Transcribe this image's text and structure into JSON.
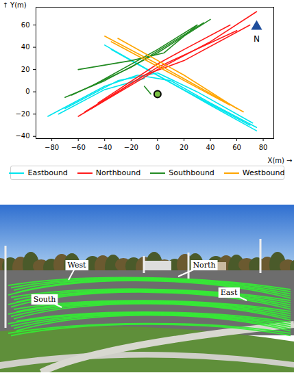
{
  "chart_data": {
    "type": "line",
    "xlabel": "X(m)",
    "ylabel": "Y(m)",
    "xlim": [
      -92,
      88
    ],
    "xticks": [
      -80,
      -60,
      -40,
      -20,
      0,
      20,
      40,
      60,
      80
    ],
    "ylim": [
      -42,
      76
    ],
    "yticks": [
      -40,
      -20,
      0,
      20,
      40,
      60
    ],
    "legend": "bottom",
    "series": [
      {
        "name": "Eastbound",
        "color": "#00e5ee",
        "tracks": [
          [
            [
              -83,
              -22
            ],
            [
              -40,
              5
            ],
            [
              -15,
              15
            ],
            [
              10,
              10
            ],
            [
              40,
              -10
            ],
            [
              75,
              -32
            ]
          ],
          [
            [
              -70,
              -15
            ],
            [
              -30,
              10
            ],
            [
              0,
              17
            ],
            [
              30,
              0
            ],
            [
              72,
              -28
            ]
          ],
          [
            [
              -40,
              42
            ],
            [
              0,
              15
            ],
            [
              40,
              -12
            ],
            [
              75,
              -35
            ]
          ],
          [
            [
              -35,
              38
            ],
            [
              10,
              8
            ],
            [
              70,
              -30
            ]
          ],
          [
            [
              -75,
              -20
            ],
            [
              -40,
              2
            ],
            [
              -10,
              12
            ]
          ]
        ]
      },
      {
        "name": "Northbound",
        "color": "#ff1a1a",
        "tracks": [
          [
            [
              -60,
              -22
            ],
            [
              0,
              20
            ],
            [
              40,
              45
            ],
            [
              75,
              72
            ]
          ],
          [
            [
              -55,
              -18
            ],
            [
              0,
              22
            ],
            [
              60,
              55
            ]
          ],
          [
            [
              -45,
              -10
            ],
            [
              0,
              25
            ],
            [
              20,
              38
            ],
            [
              55,
              60
            ]
          ],
          [
            [
              -50,
              -15
            ],
            [
              -10,
              15
            ],
            [
              20,
              28
            ],
            [
              70,
              60
            ]
          ]
        ]
      },
      {
        "name": "Southbound",
        "color": "#228b22",
        "tracks": [
          [
            [
              40,
              65
            ],
            [
              0,
              35
            ],
            [
              -40,
              10
            ],
            [
              -70,
              -5
            ]
          ],
          [
            [
              35,
              62
            ],
            [
              -20,
              22
            ],
            [
              -65,
              -3
            ]
          ],
          [
            [
              30,
              60
            ],
            [
              0,
              38
            ],
            [
              -50,
              5
            ]
          ],
          [
            [
              30,
              60
            ],
            [
              5,
              35
            ],
            [
              -20,
              28
            ],
            [
              -60,
              20
            ]
          ],
          [
            [
              -5,
              -2
            ],
            [
              -10,
              5
            ]
          ]
        ]
      },
      {
        "name": "Westbound",
        "color": "#ffa500",
        "tracks": [
          [
            [
              65,
              -18
            ],
            [
              0,
              25
            ],
            [
              -40,
              50
            ]
          ],
          [
            [
              60,
              -15
            ],
            [
              20,
              15
            ],
            [
              -30,
              48
            ]
          ],
          [
            [
              55,
              -12
            ],
            [
              -35,
              45
            ]
          ]
        ]
      }
    ],
    "points": [
      {
        "x": 0,
        "y": -2,
        "color": "#7ac143"
      }
    ],
    "annotations": [
      {
        "text": "N",
        "x": 75,
        "y": 50,
        "color": "#1f4e9c"
      }
    ],
    "photo_labels": [
      "West",
      "North",
      "South",
      "East"
    ]
  }
}
